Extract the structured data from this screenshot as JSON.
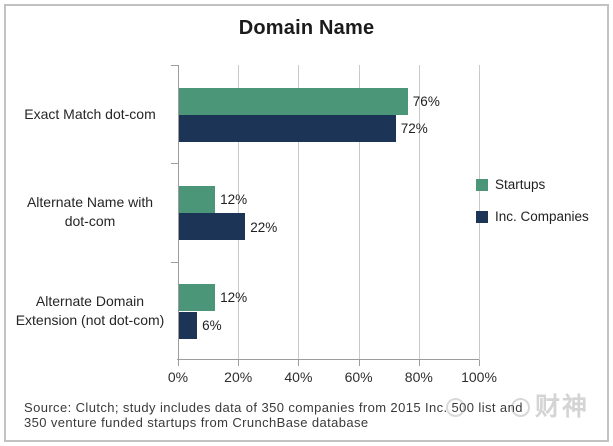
{
  "chart_data": {
    "type": "bar",
    "orientation": "horizontal",
    "title": "Domain Name",
    "categories": [
      "Exact Match dot-com",
      "Alternate Name with dot-com",
      "Alternate Domain Extension (not dot-com)"
    ],
    "category_lines": [
      [
        "Exact Match dot-com"
      ],
      [
        "Alternate Name with",
        "dot-com"
      ],
      [
        "Alternate Domain",
        "Extension (not dot-com)"
      ]
    ],
    "series": [
      {
        "name": "Startups",
        "color": "#4B9679",
        "values": [
          76,
          12,
          12
        ]
      },
      {
        "name": "Inc. Companies",
        "color": "#1C3456",
        "values": [
          72,
          22,
          6
        ]
      }
    ],
    "value_suffix": "%",
    "xlim": [
      0,
      100
    ],
    "x_tick_labels": [
      "0%",
      "20%",
      "40%",
      "60%",
      "80%",
      "100%"
    ],
    "grid": true,
    "legend_position": "right"
  },
  "source": {
    "line1": "Source: Clutch; study includes data of 350 companies from 2015 Inc. 500 list and",
    "line2": "350 venture funded startups from CrunchBase database"
  },
  "watermark": {
    "text": "财神"
  },
  "colors": {
    "grid": "#c9c9c9",
    "axis": "#9c9c9c",
    "frame_border": "#c2c2c2",
    "text": "#1f1f1f"
  }
}
